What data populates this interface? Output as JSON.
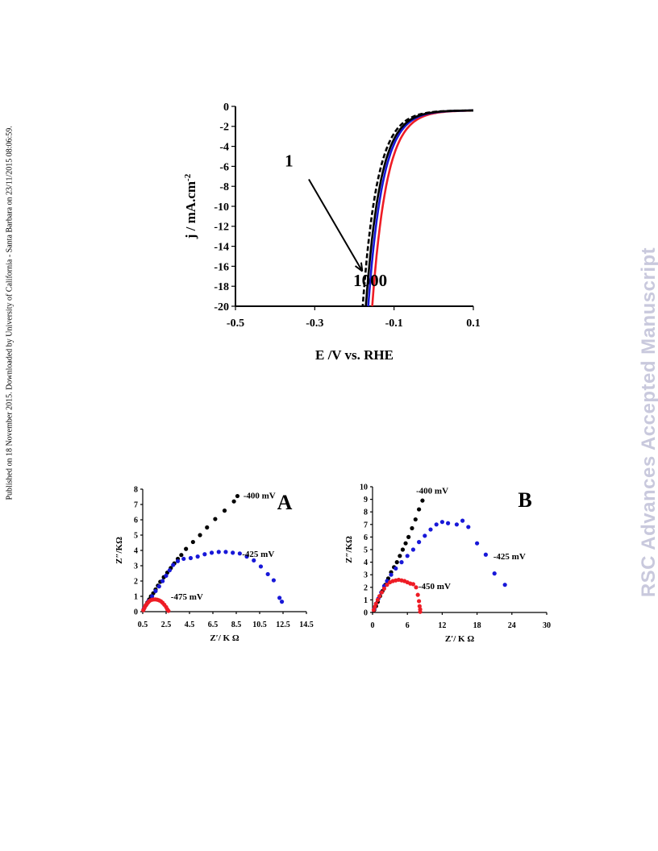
{
  "page": {
    "side_note": "Published on 18 November 2015. Downloaded by University of California - Santa Barbara on 23/11/2015 08:06:59.",
    "watermark": "RSC Advances Accepted Manuscript"
  },
  "chart_data": [
    {
      "id": "polarization",
      "type": "line",
      "xlabel": "E /V vs. RHE",
      "ylabel": "j / mA.cm",
      "ylabel_sup": "-2",
      "xlim": [
        -0.5,
        0.1
      ],
      "ylim": [
        -20,
        0
      ],
      "xticks": [
        -0.5,
        -0.3,
        -0.1,
        0.1
      ],
      "xtick_labels": [
        "-0.5",
        "-0.3",
        "-0.1",
        "0.1"
      ],
      "yticks": [
        0,
        -2,
        -4,
        -6,
        -8,
        -10,
        -12,
        -14,
        -16,
        -18,
        -20
      ],
      "ytick_labels": [
        "0",
        "-2",
        "-4",
        "-6",
        "-8",
        "-10",
        "-12",
        "-14",
        "-16",
        "-18",
        "-20"
      ],
      "annotations": [
        {
          "text": "1",
          "x": -0.365,
          "y": -6.0
        },
        {
          "text": "1000",
          "x": -0.16,
          "y": -18.0
        }
      ],
      "arrow": {
        "from": [
          -0.315,
          -7.3
        ],
        "to": [
          -0.18,
          -16.5
        ]
      },
      "series": [
        {
          "color": "#ee1c25",
          "dash": false,
          "onset": -0.045,
          "slope": 0.037,
          "plateau": -0.4,
          "shift": 0.0
        },
        {
          "color": "#1818d8",
          "dash": false,
          "onset": -0.045,
          "slope": 0.037,
          "plateau": -0.4,
          "shift": 0.01
        },
        {
          "color": "#000000",
          "dash": false,
          "onset": -0.045,
          "slope": 0.037,
          "plateau": -0.4,
          "shift": 0.016
        },
        {
          "color": "#000000",
          "dash": true,
          "onset": -0.045,
          "slope": 0.037,
          "plateau": -0.4,
          "shift": 0.024
        }
      ]
    },
    {
      "id": "nyquist-A",
      "type": "scatter",
      "panel_label": "A",
      "xlabel": "Z′/ K Ω",
      "ylabel": "Z″/KΩ",
      "xlim": [
        0.5,
        14.5
      ],
      "ylim": [
        0,
        8
      ],
      "xticks": [
        0.5,
        2.5,
        4.5,
        6.5,
        8.5,
        10.5,
        12.5,
        14.5
      ],
      "xtick_labels": [
        "0.5",
        "2.5",
        "4.5",
        "6.5",
        "8.5",
        "10.5",
        "12.5",
        "14.5"
      ],
      "yticks": [
        0,
        1,
        2,
        3,
        4,
        5,
        6,
        7,
        8
      ],
      "ytick_labels": [
        "0",
        "1",
        "2",
        "3",
        "4",
        "5",
        "6",
        "7",
        "8"
      ],
      "series": [
        {
          "label": "-400 mV",
          "color": "#000000",
          "label_at": [
            9.1,
            7.6
          ],
          "x": [
            0.6,
            0.75,
            0.9,
            1.05,
            1.2,
            1.4,
            1.6,
            1.8,
            2.0,
            2.3,
            2.6,
            2.9,
            3.2,
            3.5,
            3.8,
            4.2,
            4.8,
            5.4,
            6.0,
            6.7,
            7.5,
            8.3,
            8.6
          ],
          "y": [
            0.2,
            0.4,
            0.6,
            0.8,
            1.0,
            1.2,
            1.45,
            1.7,
            1.95,
            2.25,
            2.55,
            2.85,
            3.15,
            3.45,
            3.7,
            4.1,
            4.55,
            5.0,
            5.5,
            6.05,
            6.6,
            7.2,
            7.55
          ]
        },
        {
          "label": "-425 mV",
          "color": "#1818d8",
          "label_at": [
            9.0,
            3.8
          ],
          "x": [
            0.6,
            0.8,
            1.0,
            1.3,
            1.6,
            1.9,
            2.2,
            2.5,
            2.8,
            3.1,
            3.5,
            4.0,
            4.6,
            5.2,
            5.8,
            6.4,
            7.0,
            7.6,
            8.2,
            8.8,
            9.4,
            10.0,
            10.6,
            11.2,
            11.7,
            12.2,
            12.4
          ],
          "y": [
            0.2,
            0.45,
            0.7,
            1.0,
            1.35,
            1.65,
            2.0,
            2.35,
            2.7,
            3.05,
            3.3,
            3.45,
            3.5,
            3.6,
            3.75,
            3.85,
            3.9,
            3.9,
            3.85,
            3.8,
            3.6,
            3.35,
            2.95,
            2.45,
            2.05,
            0.9,
            0.65
          ]
        },
        {
          "label": "-475 mV",
          "color": "#ee1c25",
          "label_at": [
            2.9,
            1.0
          ],
          "x": [
            0.55,
            0.65,
            0.75,
            0.85,
            0.95,
            1.05,
            1.15,
            1.3,
            1.45,
            1.6,
            1.75,
            1.9,
            2.05,
            2.2,
            2.35,
            2.5,
            2.6,
            2.7
          ],
          "y": [
            0.1,
            0.25,
            0.4,
            0.5,
            0.6,
            0.68,
            0.74,
            0.78,
            0.8,
            0.8,
            0.78,
            0.74,
            0.68,
            0.58,
            0.45,
            0.3,
            0.15,
            0.05
          ]
        }
      ]
    },
    {
      "id": "nyquist-B",
      "type": "scatter",
      "panel_label": "B",
      "xlabel": "Z′/ K Ω",
      "ylabel": "Z″/KΩ",
      "xlim": [
        0,
        30
      ],
      "ylim": [
        0,
        10
      ],
      "xticks": [
        0,
        6,
        12,
        18,
        24,
        30
      ],
      "xtick_labels": [
        "0",
        "6",
        "12",
        "18",
        "24",
        "30"
      ],
      "yticks": [
        0,
        1,
        2,
        3,
        4,
        5,
        6,
        7,
        8,
        9,
        10
      ],
      "ytick_labels": [
        "0",
        "1",
        "2",
        "3",
        "4",
        "5",
        "6",
        "7",
        "8",
        "9",
        "10"
      ],
      "series": [
        {
          "label": "-400 mV",
          "color": "#000000",
          "label_at": [
            7.5,
            9.7
          ],
          "x": [
            0.3,
            0.6,
            0.9,
            1.3,
            1.7,
            2.2,
            2.7,
            3.2,
            3.7,
            4.2,
            4.7,
            5.2,
            5.7,
            6.2,
            6.8,
            7.4,
            8.0,
            8.6
          ],
          "y": [
            0.2,
            0.5,
            0.85,
            1.3,
            1.7,
            2.2,
            2.7,
            3.2,
            3.6,
            4.0,
            4.5,
            5.0,
            5.5,
            6.0,
            6.7,
            7.4,
            8.2,
            8.9
          ]
        },
        {
          "label": "-425 mV",
          "color": "#1818d8",
          "label_at": [
            20.8,
            4.5
          ],
          "x": [
            0.3,
            0.6,
            1.0,
            1.5,
            2.0,
            2.5,
            3.2,
            4.0,
            5.0,
            6.0,
            7.0,
            8.0,
            9.0,
            10.0,
            11.0,
            12.0,
            13.0,
            14.5,
            15.5,
            16.5,
            18.0,
            19.5,
            21.0,
            22.8
          ],
          "y": [
            0.3,
            0.7,
            1.1,
            1.6,
            2.1,
            2.5,
            3.0,
            3.5,
            4.0,
            4.5,
            5.0,
            5.6,
            6.1,
            6.6,
            7.0,
            7.2,
            7.1,
            7.0,
            7.3,
            6.8,
            5.5,
            4.6,
            3.1,
            2.2
          ]
        },
        {
          "label": "-450 mV",
          "color": "#ee1c25",
          "label_at": [
            7.9,
            2.1
          ],
          "x": [
            0.2,
            0.4,
            0.6,
            0.9,
            1.2,
            1.6,
            2.0,
            2.5,
            3.0,
            3.5,
            4.0,
            4.5,
            5.0,
            5.5,
            6.0,
            6.5,
            7.0,
            7.5,
            7.8,
            8.0,
            8.1,
            8.2,
            8.2
          ],
          "y": [
            0.2,
            0.45,
            0.7,
            1.0,
            1.3,
            1.6,
            1.9,
            2.2,
            2.4,
            2.5,
            2.55,
            2.6,
            2.55,
            2.5,
            2.4,
            2.3,
            2.25,
            2.0,
            1.4,
            0.9,
            0.5,
            0.25,
            0.05
          ]
        }
      ]
    }
  ]
}
